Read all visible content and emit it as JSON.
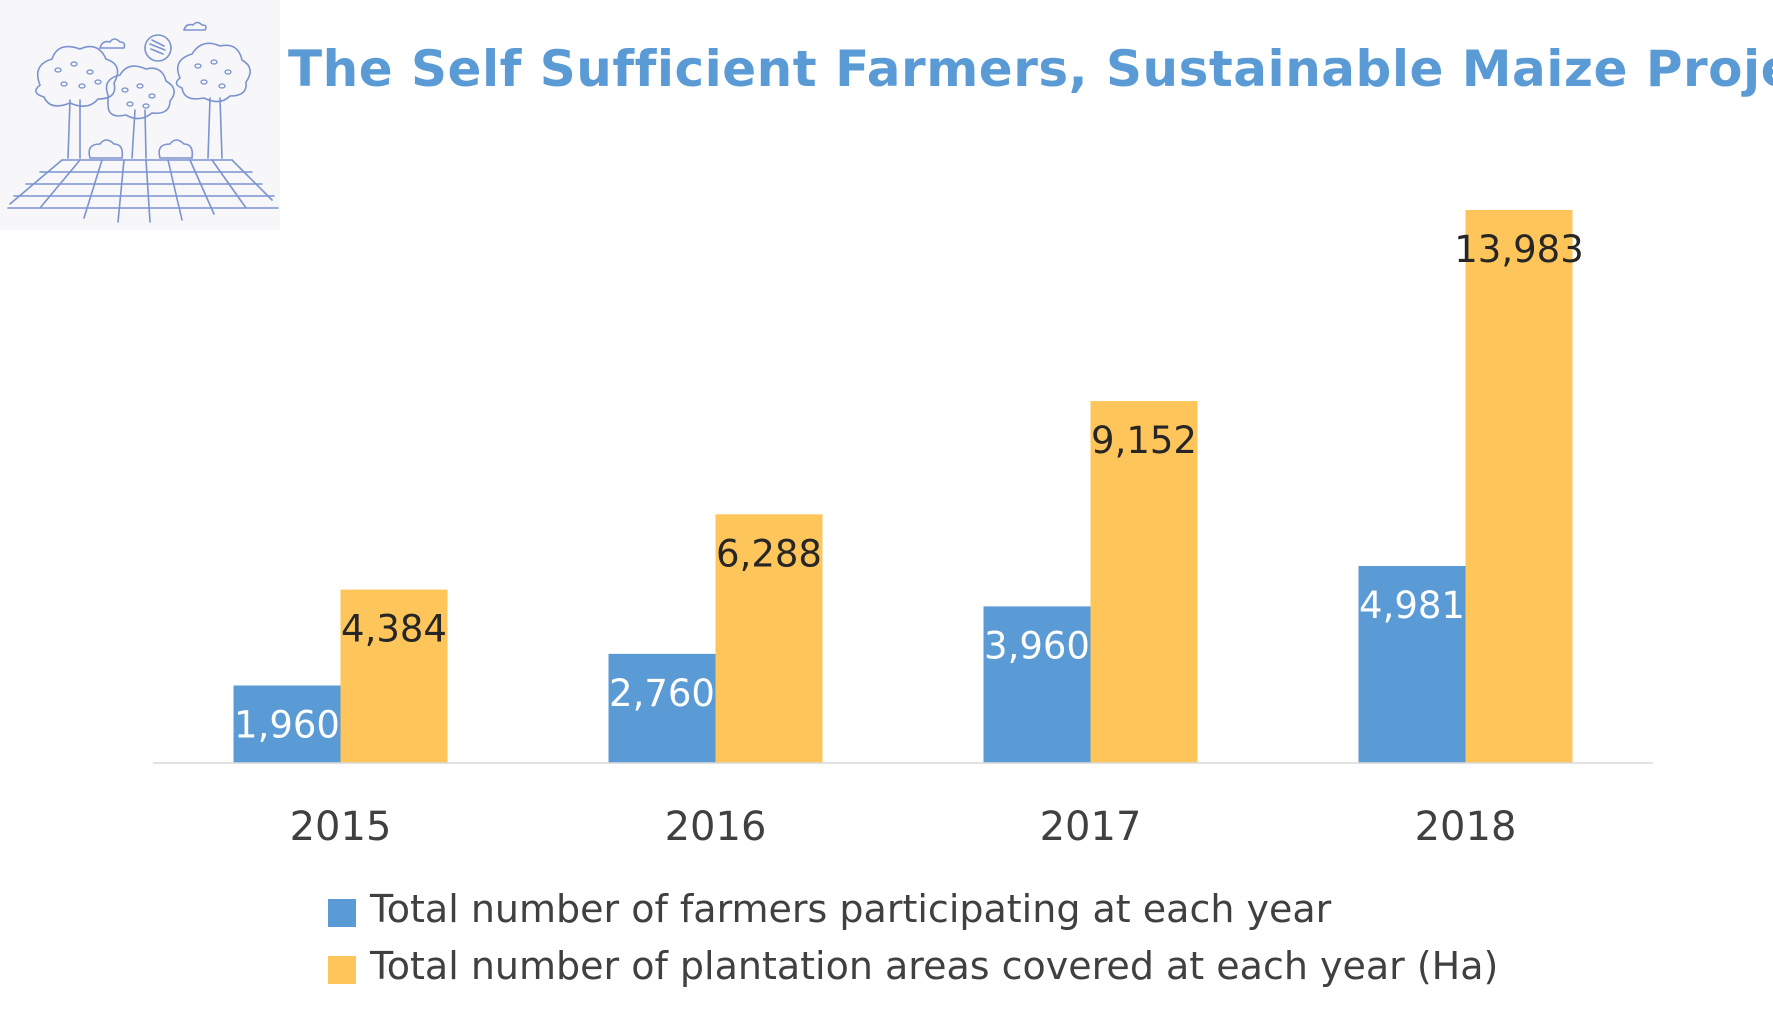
{
  "title": "The Self Sufficient Farmers, Sustainable Maize Project",
  "colors": {
    "title": "#5b9bd5",
    "farmers": "#5b9bd5",
    "areas": "#fec55a",
    "axis": "#d9d9d9",
    "tick_text": "#404040",
    "logo_line": "#7b93cf"
  },
  "chart_data": {
    "type": "bar",
    "categories": [
      "2015",
      "2016",
      "2017",
      "2018"
    ],
    "series": [
      {
        "name": "Total number of farmers participating at each year",
        "values": [
          1960,
          2760,
          3960,
          4981
        ],
        "labels": [
          "1,960",
          "2,760",
          "3,960",
          "4,981"
        ]
      },
      {
        "name": "Total number of plantation areas covered at each year (Ha)",
        "values": [
          4384,
          6288,
          9152,
          13983
        ],
        "labels": [
          "4,384",
          "6,288",
          "9,152",
          "13,983"
        ]
      }
    ],
    "ylim": [
      0,
      13983
    ],
    "grid": false,
    "legend": "bottom",
    "xlabel": "",
    "ylabel": ""
  },
  "legend": [
    {
      "label": "Total number of farmers participating at each year"
    },
    {
      "label": "Total number of plantation areas covered at each year (Ha)"
    }
  ]
}
